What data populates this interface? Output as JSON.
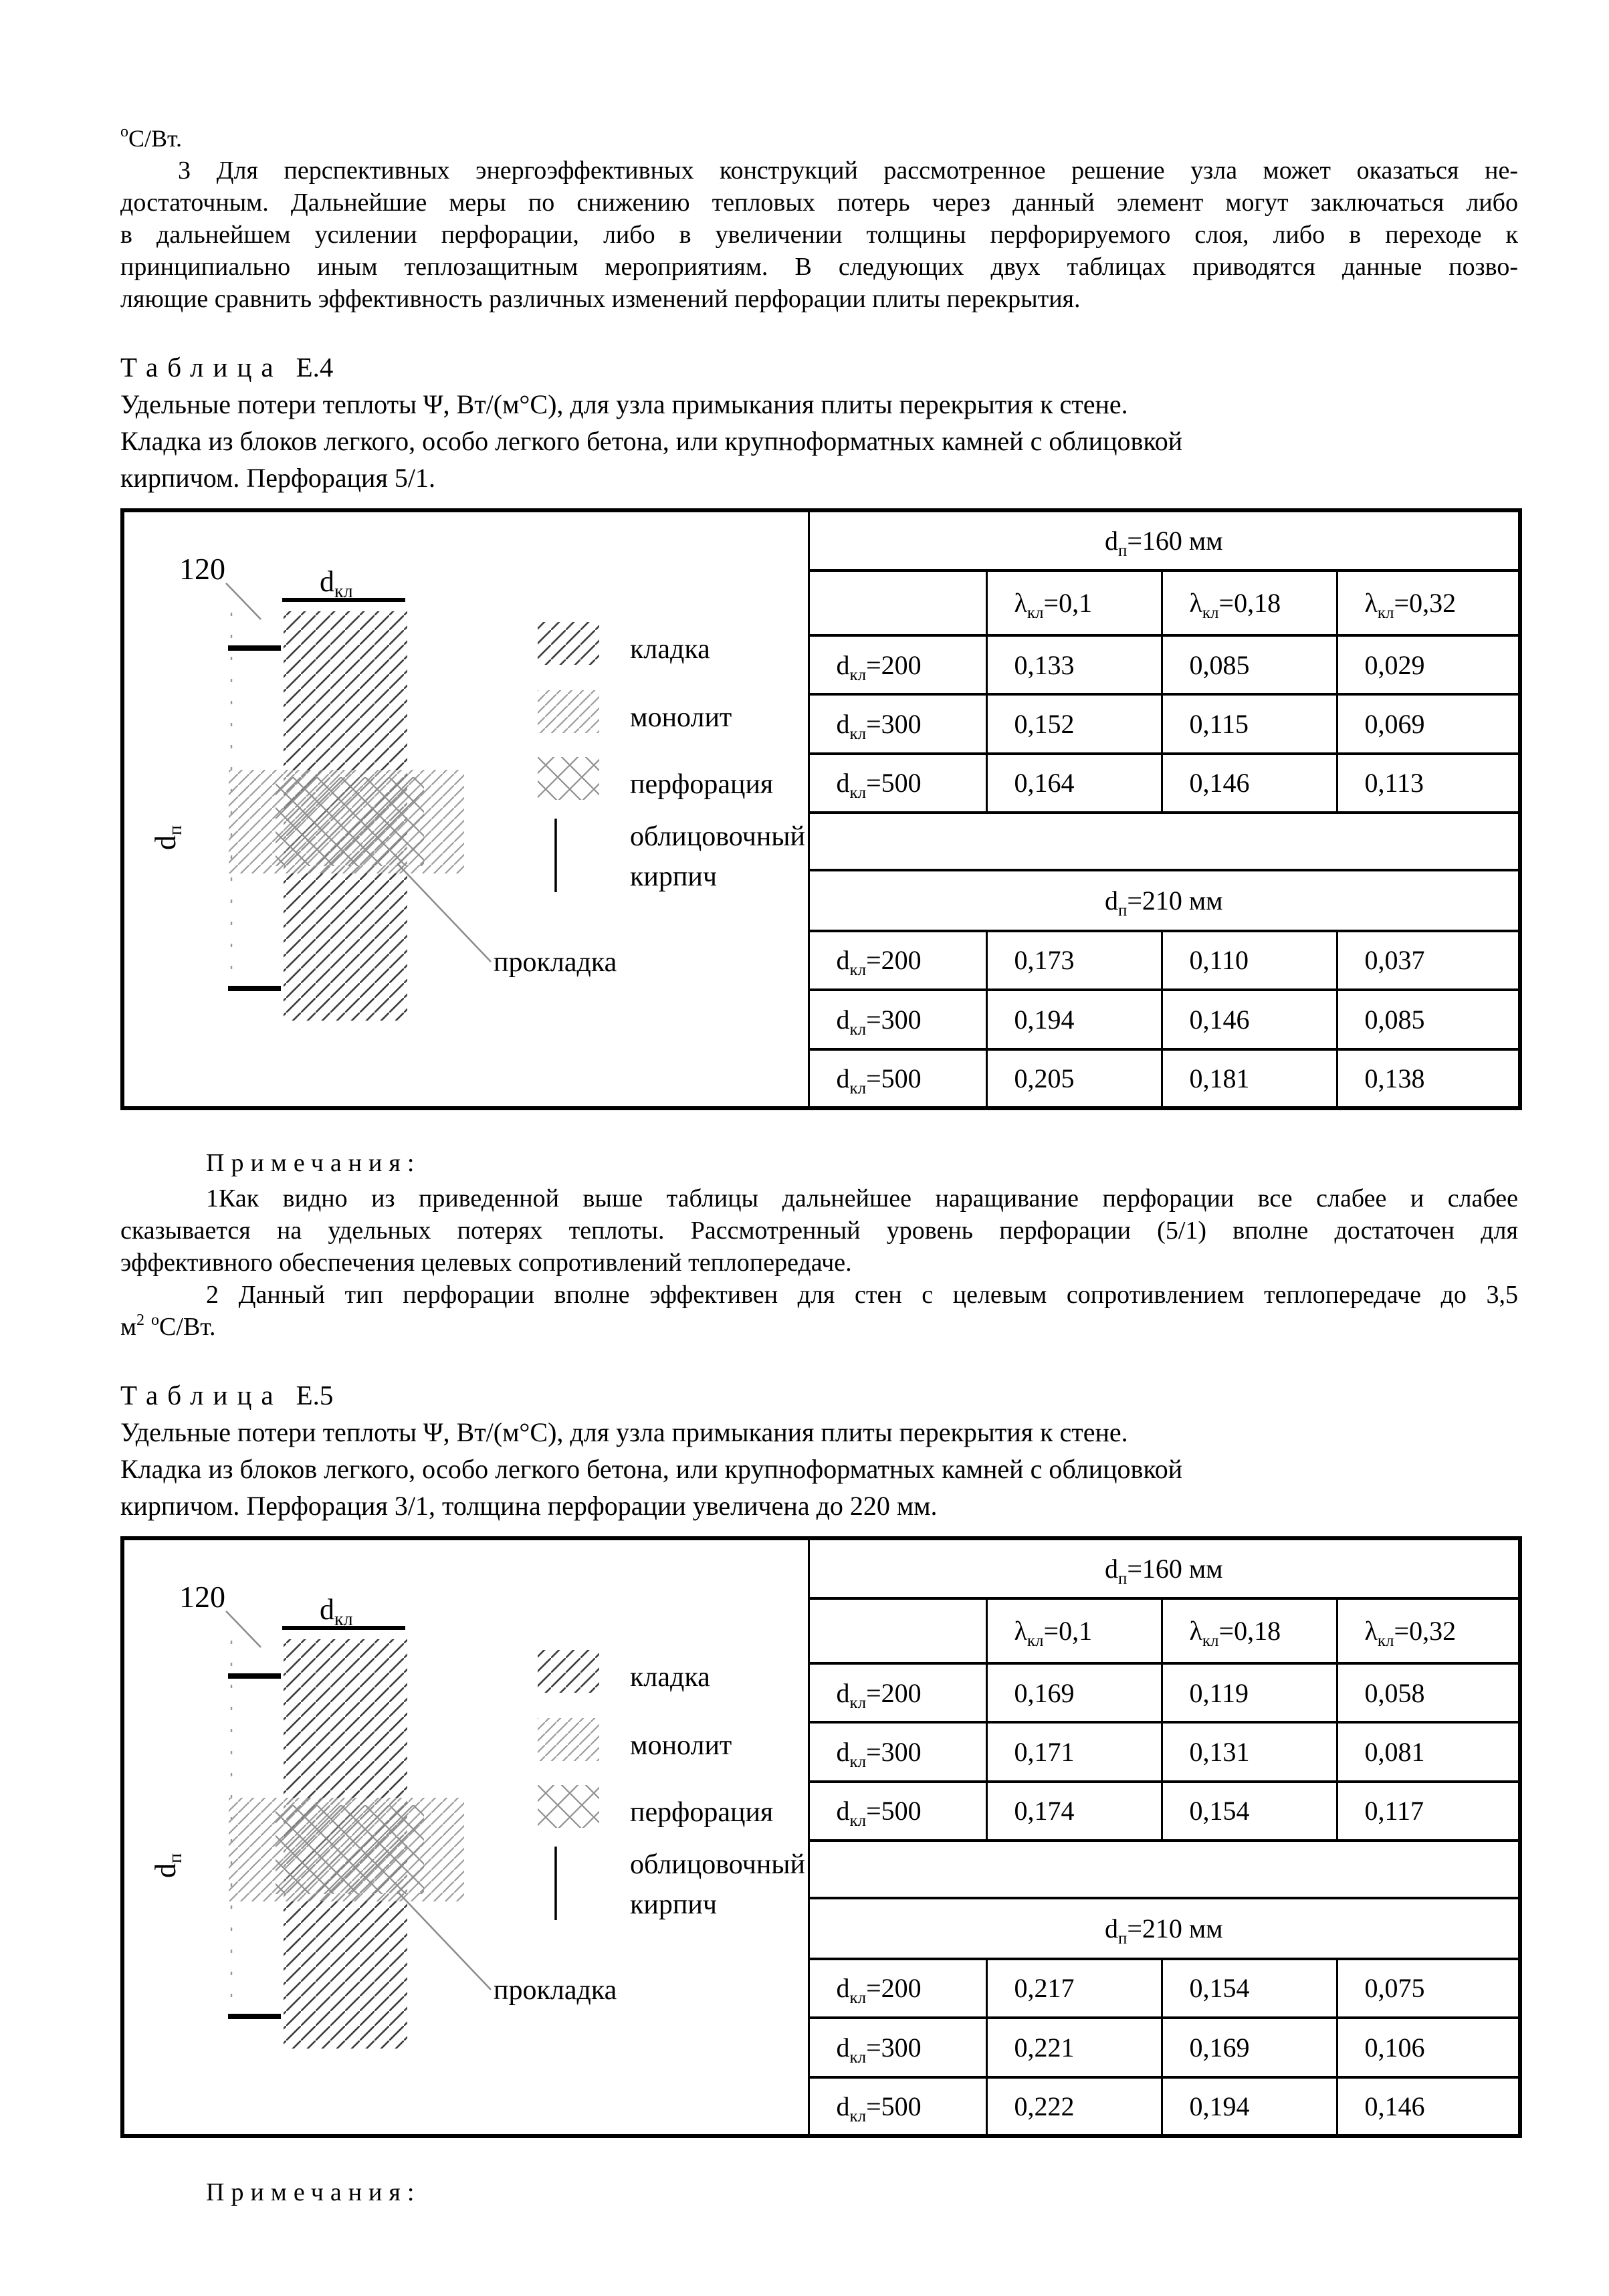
{
  "top": {
    "cont_sup": "о",
    "cont_rest": "С/Вт.",
    "para_lines": [
      "3 Для перспективных энергоэффективных конструкций рассмотренное решение узла может оказаться не-",
      "достаточным. Дальнейшие меры по снижению тепловых потерь через данный элемент могут заключаться либо",
      "в дальнейшем усилении перфорации, либо в увеличении толщины перфорируемого слоя, либо в переходе к",
      "принципиально иным теплозащитным мероприятиям. В следующих двух таблицах приводятся данные позво-",
      "ляющие сравнить эффективность различных изменений перфорации плиты перекрытия."
    ]
  },
  "diagram": {
    "dim_120": "120",
    "d_base": "d",
    "dkl_sub": "кл",
    "dp_sub": "п",
    "prokladka": "прокладка",
    "legend_kladka": "кладка",
    "legend_monolit": "монолит",
    "legend_perforacia": "перфорация",
    "legend_brick_line1": "облицовочный",
    "legend_brick_line2": "кирпич"
  },
  "tables": {
    "e4": {
      "title_word": "Таблица",
      "title_num": "Е.4",
      "desc_lines": [
        "Удельные потери теплоты Ψ, Вт/(м°С), для узла примыкания плиты перекрытия к стене.",
        "Кладка из блоков легкого, особо легкого бетона, или крупноформатных камней с облицовкой",
        "кирпичом. Перфорация 5/1."
      ],
      "header_base": "d",
      "header_sub": "п",
      "lambda_base": "λ",
      "lambda_sub": "кл",
      "row_label_base": "d",
      "row_label_sub": "кл",
      "col_rests": [
        "=0,1",
        "=0,18",
        "=0,32"
      ],
      "sections": [
        {
          "header_rest": "=160 мм",
          "rows": [
            {
              "label_rest": "=200",
              "values": [
                "0,133",
                "0,085",
                "0,029"
              ]
            },
            {
              "label_rest": "=300",
              "values": [
                "0,152",
                "0,115",
                "0,069"
              ]
            },
            {
              "label_rest": "=500",
              "values": [
                "0,164",
                "0,146",
                "0,113"
              ]
            }
          ]
        },
        {
          "header_rest": "=210 мм",
          "rows": [
            {
              "label_rest": "=200",
              "values": [
                "0,173",
                "0,110",
                "0,037"
              ]
            },
            {
              "label_rest": "=300",
              "values": [
                "0,194",
                "0,146",
                "0,085"
              ]
            },
            {
              "label_rest": "=500",
              "values": [
                "0,205",
                "0,181",
                "0,138"
              ]
            }
          ]
        }
      ]
    },
    "e5": {
      "title_word": "Таблица",
      "title_num": "Е.5",
      "desc_lines": [
        "Удельные потери теплоты Ψ, Вт/(м°С), для узла примыкания плиты перекрытия к стене.",
        "Кладка из блоков легкого, особо легкого бетона, или крупноформатных камней с облицовкой",
        "кирпичом. Перфорация 3/1, толщина перфорации увеличена до 220 мм."
      ],
      "header_base": "d",
      "header_sub": "п",
      "lambda_base": "λ",
      "lambda_sub": "кл",
      "row_label_base": "d",
      "row_label_sub": "кл",
      "col_rests": [
        "=0,1",
        "=0,18",
        "=0,32"
      ],
      "sections": [
        {
          "header_rest": "=160 мм",
          "rows": [
            {
              "label_rest": "=200",
              "values": [
                "0,169",
                "0,119",
                "0,058"
              ]
            },
            {
              "label_rest": "=300",
              "values": [
                "0,171",
                "0,131",
                "0,081"
              ]
            },
            {
              "label_rest": "=500",
              "values": [
                "0,174",
                "0,154",
                "0,117"
              ]
            }
          ]
        },
        {
          "header_rest": "=210 мм",
          "rows": [
            {
              "label_rest": "=200",
              "values": [
                "0,217",
                "0,154",
                "0,075"
              ]
            },
            {
              "label_rest": "=300",
              "values": [
                "0,221",
                "0,169",
                "0,106"
              ]
            },
            {
              "label_rest": "=500",
              "values": [
                "0,222",
                "0,194",
                "0,146"
              ]
            }
          ]
        }
      ]
    }
  },
  "notes": {
    "heading": "Примечания:",
    "note1_lines": [
      "1Как видно из приведенной выше таблицы дальнейшее наращивание перфорации все слабее и слабее",
      "сказывается на удельных потерях теплоты. Рассмотренный уровень перфорации (5/1) вполне достаточен для",
      "эффективного обеспечения целевых сопротивлений теплопередаче."
    ],
    "note2_line1": "2 Данный тип перфорации вполне эффективен для стен с целевым сопротивлением теплопередаче до 3,5",
    "note2_tail": {
      "base": "м",
      "sup1": "2",
      "sup2": "о",
      "rest": "С/Вт."
    }
  },
  "footer": {
    "heading": "Примечания:"
  }
}
